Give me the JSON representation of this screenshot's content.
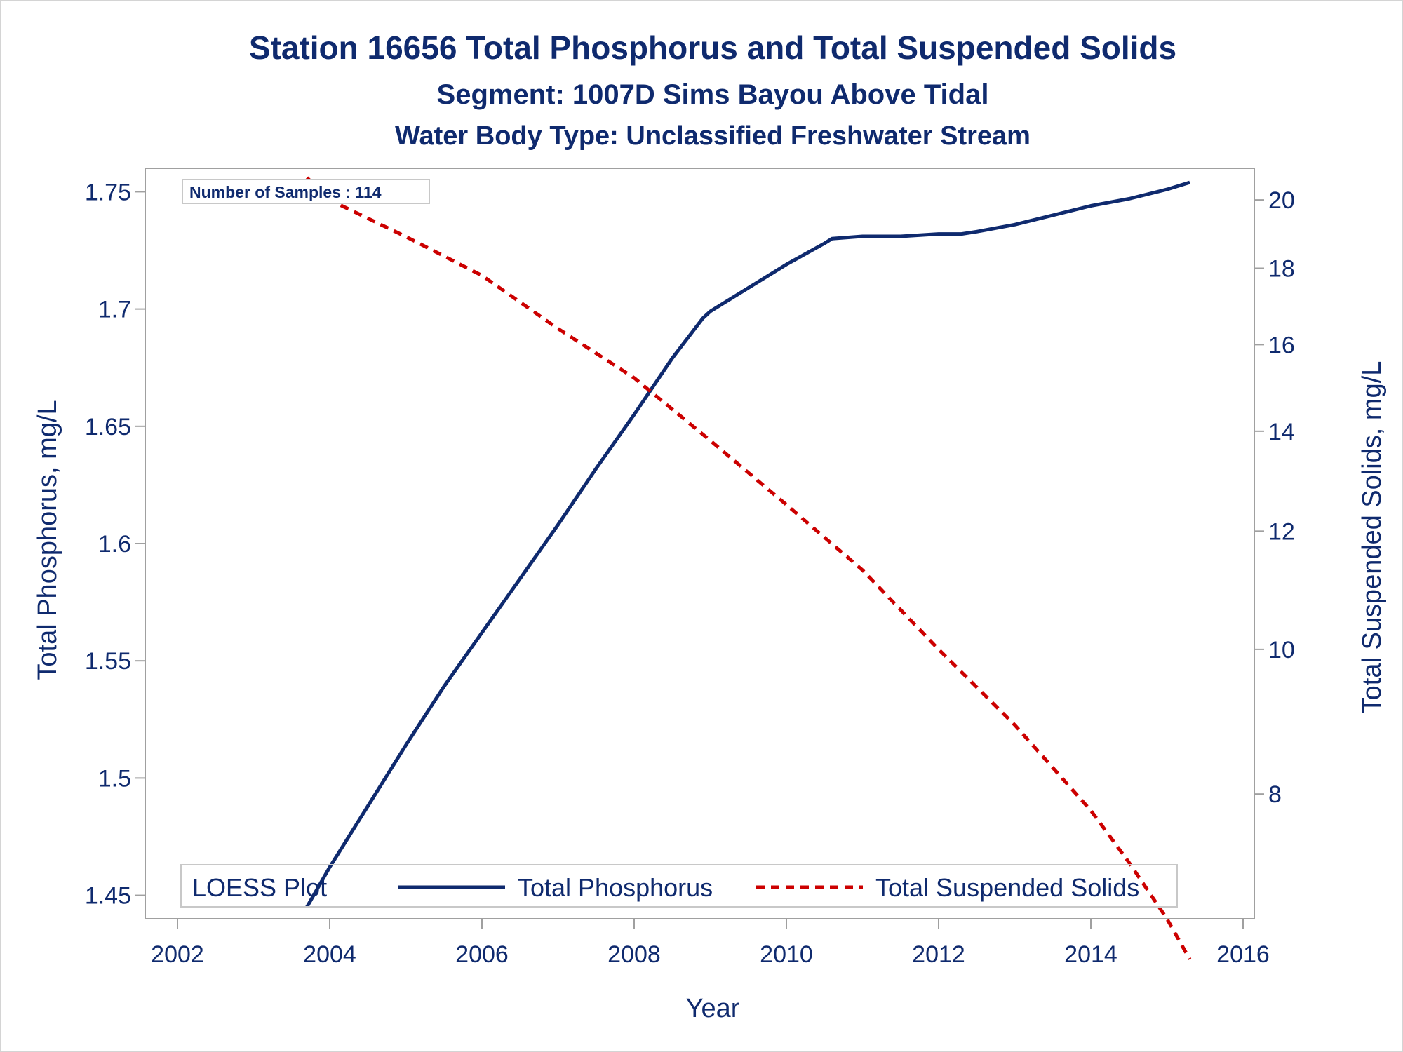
{
  "chart_data": {
    "type": "line",
    "title": "Station 16656  Total Phosphorus and Total Suspended Solids",
    "subtitle": "Segment: 1007D  Sims Bayou Above Tidal",
    "subtitle2": "Water Body Type: Unclassified Freshwater Stream",
    "xlabel": "Year",
    "ylabel": "Total Phosphorus, mg/L",
    "y2label": "Total Suspended Solids, mg/L",
    "inset_text": "Number of Samples : 114",
    "legend": {
      "title": "LOESS Plot",
      "placement": "bottom-inside",
      "entries": [
        "Total Phosphorus",
        "Total Suspended Solids"
      ]
    },
    "xlim": [
      2002,
      2016
    ],
    "xticks": [
      "2002",
      "2004",
      "2006",
      "2008",
      "2010",
      "2012",
      "2014",
      "2016"
    ],
    "ylim": [
      1.44,
      1.76
    ],
    "yticks": [
      "1.45",
      "1.5",
      "1.55",
      "1.6",
      "1.65",
      "1.7",
      "1.75"
    ],
    "y2scale": "log",
    "y2lim": [
      6.6,
      21.0
    ],
    "y2ticks": [
      "8",
      "10",
      "12",
      "14",
      "16",
      "18",
      "20"
    ],
    "grid": false,
    "series": [
      {
        "name": "Total Phosphorus",
        "axis": "left",
        "color": "#0f2a6e",
        "style": "solid",
        "x": [
          2003.7,
          2004.0,
          2004.5,
          2005.0,
          2005.5,
          2006.0,
          2006.5,
          2007.0,
          2007.5,
          2008.0,
          2008.5,
          2008.9,
          2009.0,
          2009.5,
          2010.0,
          2010.5,
          2010.6,
          2011.0,
          2011.5,
          2012.0,
          2012.3,
          2012.5,
          2013.0,
          2013.5,
          2014.0,
          2014.5,
          2015.0,
          2015.3
        ],
        "y": [
          1.445,
          1.462,
          1.488,
          1.514,
          1.539,
          1.562,
          1.585,
          1.608,
          1.632,
          1.655,
          1.679,
          1.696,
          1.699,
          1.709,
          1.719,
          1.728,
          1.73,
          1.731,
          1.731,
          1.732,
          1.732,
          1.733,
          1.736,
          1.74,
          1.744,
          1.747,
          1.751,
          1.754
        ]
      },
      {
        "name": "Total Suspended Solids",
        "axis": "right",
        "color": "#cc0000",
        "style": "dashed",
        "x": [
          2003.7,
          2004.0,
          2005.0,
          2006.0,
          2007.0,
          2008.0,
          2009.0,
          2010.0,
          2011.0,
          2012.0,
          2013.0,
          2014.0,
          2014.5,
          2015.0,
          2015.3
        ],
        "y": [
          20.7,
          20.0,
          18.9,
          17.8,
          16.4,
          15.2,
          13.8,
          12.5,
          11.3,
          10.0,
          8.9,
          7.8,
          7.2,
          6.6,
          6.2
        ]
      }
    ]
  }
}
